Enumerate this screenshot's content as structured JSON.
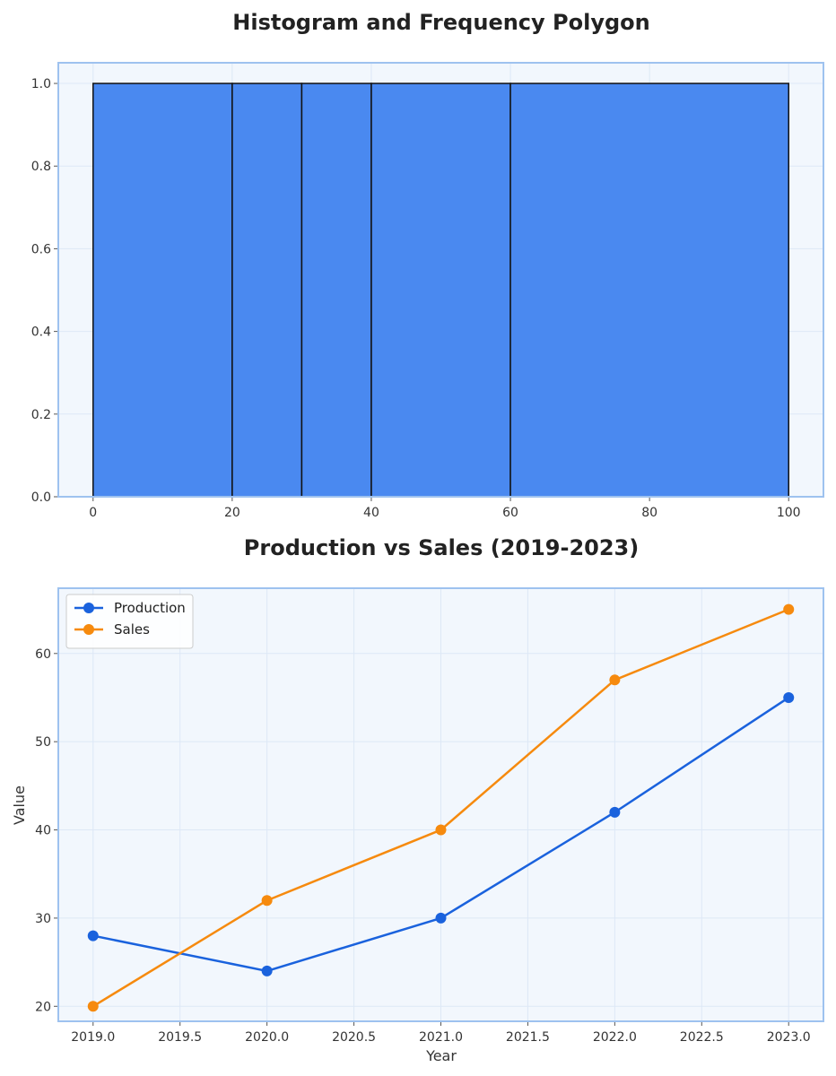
{
  "chart_data": [
    {
      "type": "histogram",
      "title": "Histogram and Frequency Polygon",
      "xlabel": "",
      "ylabel": "",
      "bins": [
        {
          "start": 0,
          "end": 20,
          "value": 1.0
        },
        {
          "start": 20,
          "end": 30,
          "value": 1.0
        },
        {
          "start": 30,
          "end": 40,
          "value": 1.0
        },
        {
          "start": 40,
          "end": 60,
          "value": 1.0
        },
        {
          "start": 60,
          "end": 100,
          "value": 1.0
        }
      ],
      "xlim": [
        -5,
        105
      ],
      "ylim": [
        0,
        1.05
      ],
      "xticks": [
        0,
        20,
        40,
        60,
        80,
        100
      ],
      "xtick_labels": [
        "0",
        "20",
        "40",
        "60",
        "80",
        "100"
      ],
      "yticks": [
        0,
        0.2,
        0.4,
        0.6,
        0.8,
        1.0
      ],
      "ytick_labels": [
        "0.0",
        "0.2",
        "0.4",
        "0.6",
        "0.8",
        "1.0"
      ],
      "grid": true,
      "bar_color": "#4a89f0",
      "edge_color": "#111111"
    },
    {
      "type": "line",
      "title": "Production vs Sales (2019-2023)",
      "xlabel": "Year",
      "ylabel": "Value",
      "x": [
        2019,
        2020,
        2021,
        2022,
        2023
      ],
      "series": [
        {
          "name": "Production",
          "values": [
            28,
            24,
            30,
            42,
            55
          ],
          "color": "#1a62dd"
        },
        {
          "name": "Sales",
          "values": [
            20,
            32,
            40,
            57,
            65
          ],
          "color": "#f68a0e"
        }
      ],
      "xlim": [
        2018.8,
        2023.2
      ],
      "ylim": [
        18.3,
        67.4
      ],
      "xticks": [
        2019,
        2019.5,
        2020,
        2020.5,
        2021,
        2021.5,
        2022,
        2022.5,
        2023
      ],
      "xtick_labels": [
        "2019.0",
        "2019.5",
        "2020.0",
        "2020.5",
        "2021.0",
        "2021.5",
        "2022.0",
        "2022.5",
        "2023.0"
      ],
      "yticks": [
        20,
        30,
        40,
        50,
        60
      ],
      "ytick_labels": [
        "20",
        "30",
        "40",
        "50",
        "60"
      ],
      "grid": true,
      "legend": "top-left"
    }
  ],
  "style": {
    "panel_bg": "#f2f7fd",
    "panel_border": "#9ec2ef",
    "grid_color": "#dde8f6"
  }
}
